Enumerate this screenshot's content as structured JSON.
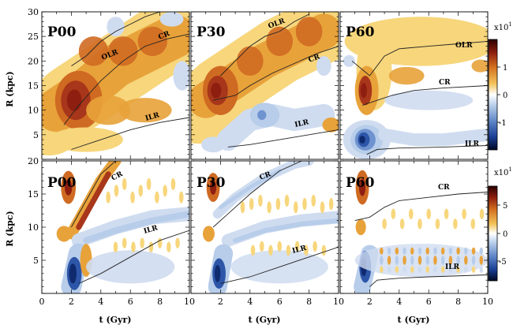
{
  "chart_data": [
    {
      "type": "heatmap",
      "panel": "P00",
      "row": "top",
      "xlim": [
        0,
        10
      ],
      "ylim": [
        0,
        30
      ],
      "resonances": {
        "OLR": [
          [
            2,
            19
          ],
          [
            3,
            21
          ],
          [
            4,
            24
          ],
          [
            5,
            26
          ],
          [
            6,
            27.5
          ],
          [
            7,
            29
          ],
          [
            8,
            30
          ]
        ],
        "CR": [
          [
            1.5,
            7
          ],
          [
            2.5,
            11
          ],
          [
            4,
            16
          ],
          [
            5.5,
            20
          ],
          [
            7,
            23
          ],
          [
            8.5,
            24.5
          ],
          [
            10,
            25.5
          ]
        ],
        "ILR": [
          [
            2,
            2
          ],
          [
            4,
            4
          ],
          [
            6,
            6
          ],
          [
            8,
            7.5
          ],
          [
            10,
            8.5
          ]
        ]
      }
    },
    {
      "type": "heatmap",
      "panel": "P30",
      "row": "top",
      "xlim": [
        0,
        10
      ],
      "ylim": [
        0,
        30
      ],
      "resonances": {
        "OLR": [
          [
            2,
            17
          ],
          [
            3,
            20
          ],
          [
            4,
            23
          ],
          [
            5,
            25
          ],
          [
            6,
            26
          ],
          [
            7,
            28
          ],
          [
            8,
            29.5
          ]
        ],
        "CR": [
          [
            1.5,
            12
          ],
          [
            3,
            13
          ],
          [
            4,
            15
          ],
          [
            5.5,
            17.5
          ],
          [
            7,
            19.5
          ],
          [
            8.5,
            21.5
          ],
          [
            10,
            23
          ]
        ],
        "ILR": [
          [
            2.5,
            2.5
          ],
          [
            4,
            3
          ],
          [
            6,
            4
          ],
          [
            8,
            5
          ],
          [
            10,
            6
          ]
        ]
      }
    },
    {
      "type": "heatmap",
      "panel": "P60",
      "row": "top",
      "xlim": [
        0,
        10
      ],
      "ylim": [
        0,
        30
      ],
      "resonances": {
        "OLR": [
          [
            0.8,
            20
          ],
          [
            2,
            17
          ],
          [
            3,
            21
          ],
          [
            4,
            22.5
          ],
          [
            6,
            23
          ],
          [
            8,
            23.5
          ],
          [
            10,
            24
          ]
        ],
        "CR": [
          [
            1.5,
            11
          ],
          [
            2.5,
            12
          ],
          [
            3.5,
            13
          ],
          [
            5,
            14
          ],
          [
            7,
            14.5
          ],
          [
            10,
            15
          ]
        ],
        "ILR": [
          [
            1.8,
            1
          ],
          [
            2.5,
            2
          ],
          [
            4,
            2.3
          ],
          [
            7,
            2.5
          ],
          [
            10,
            2.8
          ]
        ]
      }
    },
    {
      "type": "heatmap",
      "panel": "P00",
      "row": "bottom",
      "xlim": [
        0,
        10
      ],
      "ylim": [
        0,
        20
      ],
      "resonances": {
        "CR": [
          [
            2,
            10
          ],
          [
            3,
            14
          ],
          [
            4,
            18
          ],
          [
            5,
            20
          ]
        ],
        "ILR": [
          [
            2.5,
            1.5
          ],
          [
            4,
            3
          ],
          [
            6,
            5.5
          ],
          [
            8,
            8
          ],
          [
            10,
            9.5
          ]
        ]
      }
    },
    {
      "type": "heatmap",
      "panel": "P30",
      "row": "bottom",
      "xlim": [
        0,
        10
      ],
      "ylim": [
        0,
        20
      ],
      "resonances": {
        "CR": [
          [
            1.5,
            10
          ],
          [
            2.5,
            12
          ],
          [
            4,
            15
          ],
          [
            6,
            18.5
          ],
          [
            7.5,
            20
          ]
        ],
        "ILR": [
          [
            2,
            1.5
          ],
          [
            4,
            2.5
          ],
          [
            6,
            4
          ],
          [
            8,
            5.5
          ],
          [
            10,
            7
          ]
        ]
      }
    },
    {
      "type": "heatmap",
      "panel": "P60",
      "row": "bottom",
      "xlim": [
        0,
        10
      ],
      "ylim": [
        0,
        20
      ],
      "resonances": {
        "CR": [
          [
            1,
            11
          ],
          [
            2,
            11.5
          ],
          [
            3,
            13
          ],
          [
            4,
            14
          ],
          [
            6,
            14.5
          ],
          [
            8,
            15
          ],
          [
            10,
            15.3
          ]
        ],
        "ILR": [
          [
            2,
            1
          ],
          [
            2.5,
            2
          ],
          [
            4,
            2.3
          ],
          [
            6,
            2.5
          ],
          [
            10,
            2.8
          ]
        ]
      }
    }
  ],
  "panel_labels": [
    "P00",
    "P30",
    "P60",
    "P00",
    "P30",
    "P60"
  ],
  "resonance_labels": {
    "olr": "OLR",
    "cr": "CR",
    "ilr": "ILR"
  },
  "axes": {
    "ylabel": "R (kpc)",
    "xlabel": "t (Gyr)",
    "top_yticks": [
      "5",
      "10",
      "15",
      "20",
      "25",
      "30"
    ],
    "bottom_yticks": [
      "5",
      "10",
      "15",
      "20"
    ],
    "x_ticks_first": [
      "0",
      "2",
      "4",
      "6",
      "8",
      "10"
    ],
    "x_ticks_rest": [
      "2",
      "4",
      "6",
      "8",
      "10"
    ]
  },
  "colorbars": [
    {
      "multiplier": "x10",
      "exponent": "1",
      "ticks": [
        "1",
        "0",
        "-1"
      ]
    },
    {
      "multiplier": "x10",
      "exponent": "1",
      "ticks": [
        "5",
        "0",
        "-5"
      ]
    }
  ],
  "colors": {
    "pos": "#e8a23a",
    "pos_strong": "#8e1f10",
    "neg": "#b7cdea",
    "neg_strong": "#0f2a6e",
    "zero": "#ffffff"
  }
}
